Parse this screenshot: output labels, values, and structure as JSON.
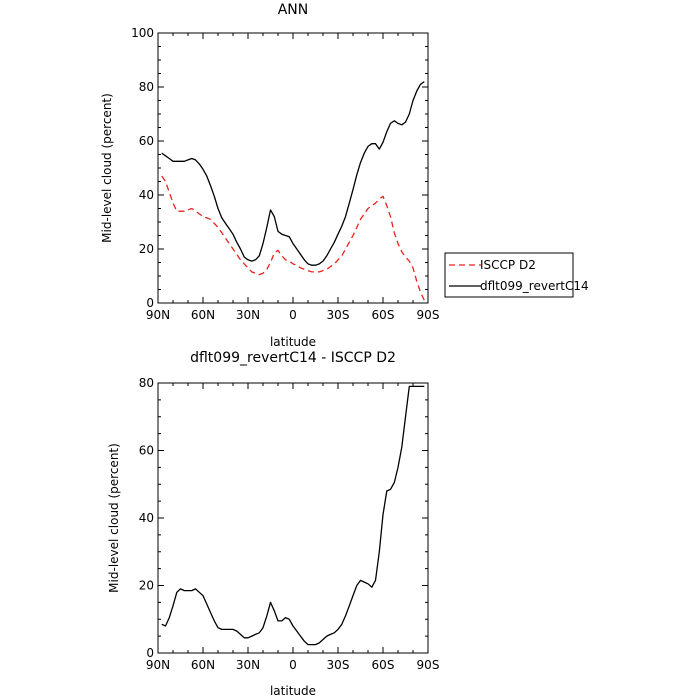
{
  "chart_data": [
    {
      "type": "line",
      "title": "ANN",
      "xlabel": "latitude",
      "ylabel": "Mid-level cloud (percent)",
      "xlim": [
        90,
        -90
      ],
      "ylim": [
        0,
        100
      ],
      "xticks": [
        90,
        60,
        30,
        0,
        -30,
        -60,
        -90
      ],
      "xtick_labels": [
        "90N",
        "60N",
        "30N",
        "0",
        "30S",
        "60S",
        "90S"
      ],
      "yticks": [
        0,
        20,
        40,
        60,
        80,
        100
      ],
      "ytick_labels": [
        "0",
        "20",
        "40",
        "60",
        "80",
        "100"
      ],
      "legend_position": "right",
      "series": [
        {
          "name": "ISCCP D2",
          "color": "#e8231d",
          "dash": "dashed",
          "x": [
            87.5,
            85,
            82.5,
            80,
            77.5,
            75,
            72.5,
            70,
            67.5,
            65,
            62.5,
            60,
            57.5,
            55,
            52.5,
            50,
            47.5,
            45,
            42.5,
            40,
            37.5,
            35,
            32.5,
            30,
            27.5,
            25,
            22.5,
            20,
            17.5,
            15,
            12.5,
            10,
            7.5,
            5,
            2.5,
            0,
            -2.5,
            -5,
            -7.5,
            -10,
            -12.5,
            -15,
            -17.5,
            -20,
            -22.5,
            -25,
            -27.5,
            -30,
            -32.5,
            -35,
            -37.5,
            -40,
            -42.5,
            -45,
            -47.5,
            -50,
            -52.5,
            -55,
            -57.5,
            -60,
            -62.5,
            -65,
            -67.5,
            -70,
            -72.5,
            -75,
            -77.5,
            -80,
            -82.5,
            -85,
            -87.5
          ],
          "y": [
            47,
            45,
            41,
            37,
            34,
            34,
            34,
            34.5,
            35,
            34,
            33,
            32,
            31.5,
            31,
            29.5,
            28,
            26,
            24,
            22,
            20,
            18,
            16,
            14.5,
            13,
            11.5,
            11,
            10.5,
            11,
            12.5,
            15,
            18.5,
            19.5,
            17.5,
            16,
            15.5,
            14.5,
            14,
            13,
            12.5,
            12,
            11.5,
            11.5,
            11.5,
            12,
            12.5,
            13.5,
            14.5,
            16,
            17.5,
            20,
            22.5,
            25,
            28,
            31,
            33,
            35,
            36,
            37,
            38.5,
            39.5,
            36,
            32,
            26,
            22,
            19,
            17,
            15.5,
            13,
            8,
            4,
            1
          ]
        },
        {
          "name": "dflt099_revertC14",
          "color": "#000000",
          "dash": "solid",
          "x": [
            87.5,
            85,
            82.5,
            80,
            77.5,
            75,
            72.5,
            70,
            67.5,
            65,
            62.5,
            60,
            57.5,
            55,
            52.5,
            50,
            47.5,
            45,
            42.5,
            40,
            37.5,
            35,
            32.5,
            30,
            27.5,
            25,
            22.5,
            20,
            17.5,
            15,
            12.5,
            10,
            7.5,
            5,
            2.5,
            0,
            -2.5,
            -5,
            -7.5,
            -10,
            -12.5,
            -15,
            -17.5,
            -20,
            -22.5,
            -25,
            -27.5,
            -30,
            -32.5,
            -35,
            -37.5,
            -40,
            -42.5,
            -45,
            -47.5,
            -50,
            -52.5,
            -55,
            -57.5,
            -60,
            -62.5,
            -65,
            -67.5,
            -70,
            -72.5,
            -75,
            -77.5,
            -80,
            -82.5,
            -85,
            -87.5
          ],
          "y": [
            55.5,
            54.5,
            53.5,
            52.5,
            52.5,
            52.5,
            52.5,
            53,
            53.5,
            53,
            51.5,
            49.5,
            47,
            43.5,
            39.5,
            35,
            31.5,
            29.5,
            27.5,
            25.5,
            22.5,
            20,
            17,
            16,
            15.5,
            16,
            17.5,
            22,
            28,
            34.5,
            32,
            26.5,
            25.5,
            25,
            24.5,
            22,
            20,
            18,
            16,
            14.5,
            14,
            14,
            14.5,
            15.5,
            17.5,
            20,
            22.5,
            25.5,
            28.5,
            32,
            37,
            42,
            47.5,
            52,
            55.5,
            58,
            59,
            59,
            57,
            59.5,
            63.5,
            66.5,
            67.5,
            66.5,
            66,
            67,
            70,
            75,
            78.5,
            81,
            82
          ]
        }
      ]
    },
    {
      "type": "line",
      "title": "dflt099_revertC14 - ISCCP D2",
      "xlabel": "latitude",
      "ylabel": "Mid-level cloud (percent)",
      "xlim": [
        90,
        -90
      ],
      "ylim": [
        0,
        80
      ],
      "xticks": [
        90,
        60,
        30,
        0,
        -30,
        -60,
        -90
      ],
      "xtick_labels": [
        "90N",
        "60N",
        "30N",
        "0",
        "30S",
        "60S",
        "90S"
      ],
      "yticks": [
        0,
        20,
        40,
        60,
        80
      ],
      "ytick_labels": [
        "0",
        "20",
        "40",
        "60",
        "80"
      ],
      "series": [
        {
          "color": "#000000",
          "dash": "solid",
          "x": [
            87.5,
            85,
            82.5,
            80,
            77.5,
            75,
            72.5,
            70,
            67.5,
            65,
            62.5,
            60,
            57.5,
            55,
            52.5,
            50,
            47.5,
            45,
            42.5,
            40,
            37.5,
            35,
            32.5,
            30,
            27.5,
            25,
            22.5,
            20,
            17.5,
            15,
            12.5,
            10,
            7.5,
            5,
            2.5,
            0,
            -2.5,
            -5,
            -7.5,
            -10,
            -12.5,
            -15,
            -17.5,
            -20,
            -22.5,
            -25,
            -27.5,
            -30,
            -32.5,
            -35,
            -37.5,
            -40,
            -42.5,
            -45,
            -47.5,
            -50,
            -52.5,
            -55,
            -57.5,
            -60,
            -62.5,
            -65,
            -67.5,
            -70,
            -72.5,
            -75,
            -77.5,
            -80,
            -82.5,
            -85,
            -87.5
          ],
          "y": [
            8.5,
            8,
            10.5,
            14,
            18,
            19,
            18.5,
            18.5,
            18.5,
            19,
            18,
            17,
            14.5,
            12,
            9.5,
            7.5,
            7,
            7,
            7,
            7,
            6.5,
            5.5,
            4.5,
            4.5,
            5,
            5.5,
            6,
            7.5,
            11,
            15,
            12.5,
            9.5,
            9.5,
            10.5,
            10,
            8,
            6.5,
            5,
            3.5,
            2.5,
            2.5,
            2.5,
            3,
            4,
            5,
            5.5,
            6,
            7,
            8.5,
            11,
            14,
            17,
            20,
            21.5,
            21,
            20.5,
            19.5,
            21.5,
            30,
            41,
            48,
            48.5,
            50.5,
            55,
            61,
            70,
            79,
            79,
            79,
            79,
            79
          ]
        }
      ]
    }
  ],
  "legend": {
    "items": [
      {
        "label": "ISCCP D2",
        "color": "#e8231d",
        "dash": "dashed"
      },
      {
        "label": "dflt099_revertC14",
        "color": "#000000",
        "dash": "solid"
      }
    ]
  }
}
